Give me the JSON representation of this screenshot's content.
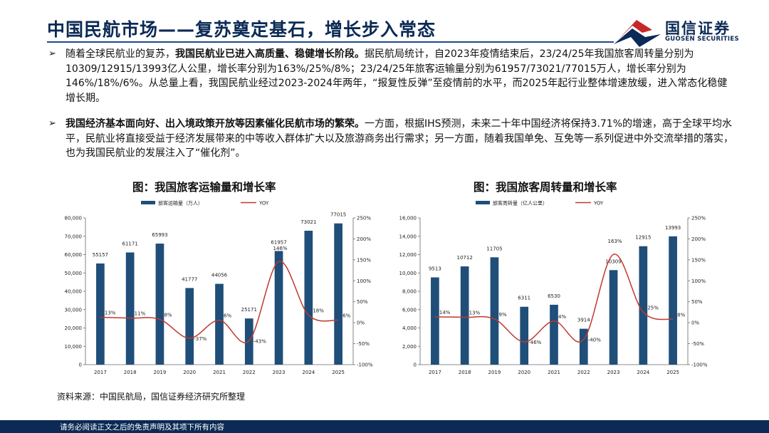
{
  "header": {
    "title": "中国民航市场——复苏奠定基石，增长步入常态",
    "logo_cn": "国信证券",
    "logo_en": "GUOSEN SECURITIES"
  },
  "paragraphs": [
    {
      "bullet": "➢",
      "lead": "随着全球民航业的复苏，",
      "bold": "我国民航业已进入高质量、稳健增长阶段。",
      "rest": "据民航局统计，自2023年疫情结束后，23/24/25年我国旅客周转量分别为10309/12915/13993亿人公里，增长率分别为163%/25%/8%；23/24/25年旅客运输量分别为61957/73021/77015万人，增长率分别为146%/18%/6%。从总量上看，我国民航业经过2023-2024年两年，“报复性反弹”至疫情前的水平，而2025年起行业整体增速放缓，进入常态化稳健增长期。"
    },
    {
      "bullet": "➢",
      "lead": "",
      "bold": "我国经济基本面向好、出入境政策开放等因素催化民航市场的繁荣。",
      "rest": "一方面，根据IHS预测，未来二十年中国经济将保持3.71%的增速，高于全球平均水平，民航业将直接受益于经济发展带来的中等收入群体扩大以及旅游商务出行需求；另一方面，随着我国单免、互免等一系列促进中外交流举措的落实，也为我国民航业的发展注入了“催化剂”。"
    }
  ],
  "chart_data": [
    {
      "type": "bar",
      "title": "图：我国旅客运输量和增长率",
      "categories": [
        "2017",
        "2018",
        "2019",
        "2020",
        "2021",
        "2022",
        "2023",
        "2024",
        "2025"
      ],
      "series": [
        {
          "name": "旅客运输量（万人）",
          "type": "bar",
          "axis": "left",
          "values": [
            55157,
            61171,
            65993,
            41777,
            44056,
            25171,
            61957,
            73021,
            77015
          ],
          "labels": [
            "55157",
            "61171",
            "65993",
            "41777",
            "44056",
            "25171",
            "61957",
            "73021",
            "77015"
          ]
        },
        {
          "name": "YOY",
          "type": "line",
          "axis": "right",
          "values": [
            13,
            11,
            8,
            -37,
            6,
            -43,
            146,
            18,
            6
          ],
          "labels": [
            "13%",
            "11%",
            "8%",
            "-37%",
            "6%",
            "-43%",
            "146%",
            "18%",
            "6%"
          ]
        }
      ],
      "ylim_left": [
        0,
        80000
      ],
      "yticks_left": [
        "0",
        "10,000",
        "20,000",
        "30,000",
        "40,000",
        "50,000",
        "60,000",
        "70,000",
        "80,000"
      ],
      "ylim_right": [
        -100,
        250
      ],
      "yticks_right": [
        "-100%",
        "-50%",
        "0%",
        "50%",
        "100%",
        "150%",
        "200%",
        "250%"
      ],
      "legend": "top-center",
      "colors": {
        "bar": "#1f4e79",
        "line": "#c0392b"
      }
    },
    {
      "type": "bar",
      "title": "图：我国旅客周转量和增长率",
      "categories": [
        "2017",
        "2018",
        "2019",
        "2020",
        "2021",
        "2022",
        "2023",
        "2024",
        "2025"
      ],
      "series": [
        {
          "name": "旅客周转量（亿人公里）",
          "type": "bar",
          "axis": "left",
          "values": [
            9513,
            10712,
            11705,
            6311,
            6530,
            3914,
            10309,
            12915,
            13993
          ],
          "labels": [
            "9513",
            "10712",
            "11705",
            "6311",
            "6530",
            "3914",
            "10309",
            "12915",
            "13993"
          ]
        },
        {
          "name": "YOY",
          "type": "line",
          "axis": "right",
          "values": [
            14,
            13,
            9,
            -46,
            4,
            -40,
            163,
            25,
            8
          ],
          "labels": [
            "14%",
            "13%",
            "9%",
            "-46%",
            "4%",
            "-40%",
            "163%",
            "25%",
            "8%"
          ]
        }
      ],
      "ylim_left": [
        0,
        16000
      ],
      "yticks_left": [
        "0",
        "2,000",
        "4,000",
        "6,000",
        "8,000",
        "10,000",
        "12,000",
        "14,000",
        "16,000"
      ],
      "ylim_right": [
        -100,
        250
      ],
      "yticks_right": [
        "-100%",
        "-50%",
        "0%",
        "50%",
        "100%",
        "150%",
        "200%",
        "250%"
      ],
      "legend": "top-center",
      "colors": {
        "bar": "#1f4e79",
        "line": "#c0392b"
      }
    }
  ],
  "source": "资料来源：中国民航局，国信证券经济研究所整理",
  "footer": "请务必阅读正文之后的免责声明及其项下所有内容"
}
